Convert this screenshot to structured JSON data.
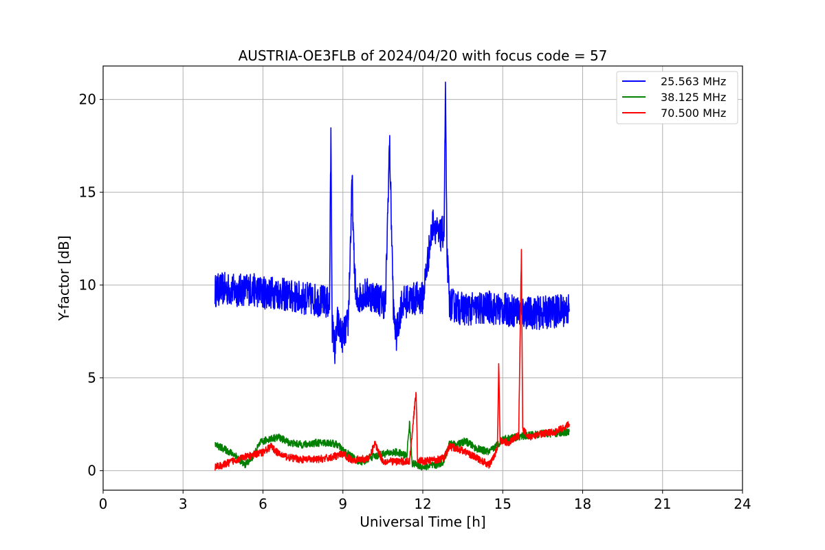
{
  "chart_data": {
    "type": "line",
    "title": "AUSTRIA-OE3FLB of 2024/04/20 with focus code = 57",
    "xlabel": "Universal Time [h]",
    "ylabel": "Y-factor [dB]",
    "xlim": [
      0,
      24
    ],
    "ylim": [
      -1.05,
      21.8
    ],
    "xticks": [
      0,
      3,
      6,
      9,
      12,
      15,
      18,
      21,
      24
    ],
    "yticks": [
      0,
      5,
      10,
      15,
      20
    ],
    "grid": true,
    "legend_position": "top-right",
    "series": [
      {
        "name": "25.563 MHz",
        "color": "#0000ff",
        "noise": 0.9,
        "x": [
          4.2,
          4.5,
          5.0,
          5.5,
          6.0,
          6.5,
          7.0,
          7.5,
          8.0,
          8.3,
          8.5,
          8.55,
          8.6,
          8.7,
          8.8,
          8.9,
          9.0,
          9.2,
          9.35,
          9.4,
          9.5,
          9.7,
          10.0,
          10.3,
          10.6,
          10.75,
          10.9,
          11.0,
          11.2,
          11.5,
          11.8,
          12.0,
          12.2,
          12.4,
          12.6,
          12.8,
          12.85,
          12.9,
          13.0,
          13.3,
          13.6,
          14.0,
          14.5,
          14.8,
          15.0,
          15.5,
          16.0,
          16.5,
          17.0,
          17.5
        ],
        "y": [
          9.7,
          9.8,
          9.7,
          9.8,
          9.6,
          9.6,
          9.4,
          9.3,
          9.2,
          9.1,
          9.0,
          18.2,
          7.8,
          6.5,
          8.0,
          7.5,
          7.2,
          8.0,
          15.7,
          12.0,
          9.0,
          9.5,
          9.5,
          9.3,
          9.0,
          17.8,
          8.5,
          7.2,
          9.0,
          9.2,
          9.3,
          9.3,
          11.5,
          13.5,
          12.5,
          13.0,
          20.7,
          12.0,
          9.0,
          8.8,
          8.7,
          8.7,
          8.8,
          8.7,
          8.7,
          8.6,
          8.5,
          8.5,
          8.6,
          8.7
        ]
      },
      {
        "name": "38.125 MHz",
        "color": "#008000",
        "noise": 0.2,
        "x": [
          4.2,
          4.5,
          5.0,
          5.3,
          5.6,
          5.9,
          6.2,
          6.6,
          7.0,
          7.5,
          8.0,
          8.5,
          8.8,
          9.0,
          9.3,
          9.6,
          9.8,
          10.0,
          10.5,
          11.0,
          11.4,
          11.5,
          11.6,
          12.0,
          12.5,
          12.8,
          13.0,
          13.3,
          13.6,
          14.0,
          14.5,
          14.8,
          15.0,
          15.5,
          16.0,
          16.5,
          17.0,
          17.5
        ],
        "y": [
          1.4,
          1.2,
          0.8,
          0.3,
          0.7,
          1.5,
          1.7,
          1.8,
          1.5,
          1.4,
          1.5,
          1.5,
          1.4,
          1.1,
          0.8,
          0.5,
          0.5,
          0.7,
          0.9,
          1.0,
          0.8,
          2.6,
          0.4,
          0.2,
          0.3,
          0.5,
          1.5,
          1.4,
          1.6,
          1.2,
          1.0,
          1.4,
          1.7,
          1.8,
          1.9,
          2.0,
          2.0,
          2.1
        ]
      },
      {
        "name": "70.500 MHz",
        "color": "#ff0000",
        "noise": 0.2,
        "x": [
          4.2,
          4.5,
          5.0,
          5.5,
          6.0,
          6.3,
          6.6,
          7.0,
          7.5,
          8.0,
          8.5,
          9.0,
          9.3,
          9.6,
          10.0,
          10.2,
          10.5,
          11.0,
          11.5,
          11.75,
          11.8,
          12.0,
          12.5,
          12.8,
          13.0,
          13.5,
          14.0,
          14.5,
          14.8,
          14.85,
          14.9,
          15.2,
          15.6,
          15.7,
          15.75,
          16.0,
          16.5,
          17.0,
          17.5
        ],
        "y": [
          0.2,
          0.3,
          0.6,
          0.8,
          1.0,
          1.3,
          0.9,
          0.7,
          0.6,
          0.6,
          0.7,
          0.9,
          0.6,
          0.6,
          0.7,
          1.5,
          0.5,
          0.5,
          0.5,
          4.3,
          0.6,
          0.5,
          0.6,
          0.7,
          1.3,
          1.1,
          0.7,
          0.3,
          1.2,
          5.9,
          1.6,
          1.5,
          1.9,
          11.9,
          2.2,
          1.8,
          2.0,
          2.1,
          2.5
        ]
      }
    ]
  }
}
